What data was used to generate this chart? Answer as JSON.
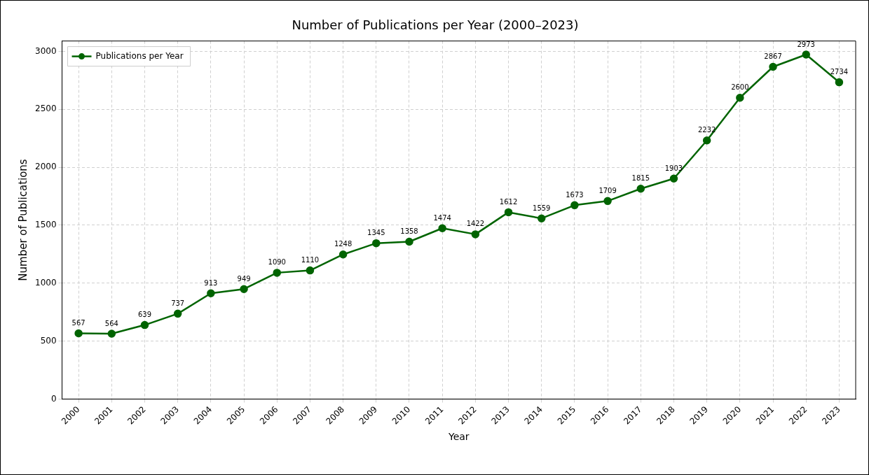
{
  "chart_data": {
    "type": "line",
    "title": "Number of Publications per Year (2000–2023)",
    "xlabel": "Year",
    "ylabel": "Number of Publications",
    "categories": [
      "2000",
      "2001",
      "2002",
      "2003",
      "2004",
      "2005",
      "2006",
      "2007",
      "2008",
      "2009",
      "2010",
      "2011",
      "2012",
      "2013",
      "2014",
      "2015",
      "2016",
      "2017",
      "2018",
      "2019",
      "2020",
      "2021",
      "2022",
      "2023"
    ],
    "series": [
      {
        "name": "Publications per Year",
        "color": "#006400",
        "values": [
          567,
          564,
          639,
          737,
          913,
          949,
          1090,
          1110,
          1248,
          1345,
          1358,
          1474,
          1422,
          1612,
          1559,
          1673,
          1709,
          1815,
          1903,
          2232,
          2600,
          2867,
          2973,
          2734
        ]
      }
    ],
    "ylim": [
      0,
      3090
    ],
    "yticks": [
      0,
      500,
      1000,
      1500,
      2000,
      2500,
      3000
    ],
    "grid": true,
    "legend": "top left",
    "marker": "circle",
    "line_style": "solid",
    "data_labels": true
  }
}
